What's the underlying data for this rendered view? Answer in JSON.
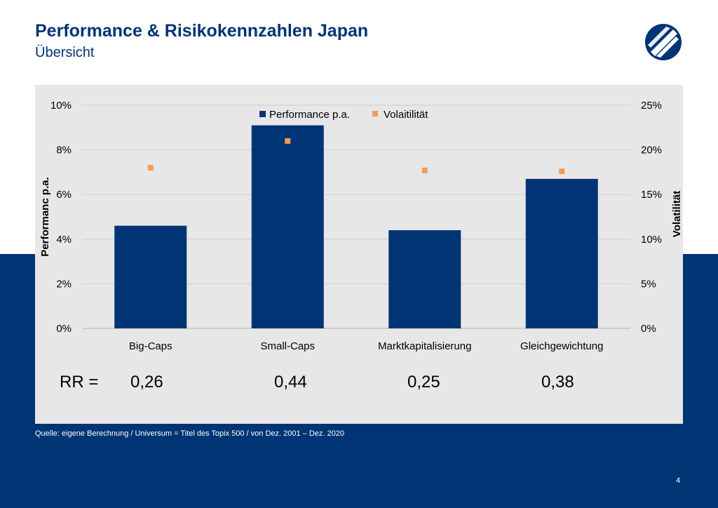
{
  "header": {
    "title": "Performance & Risikokennzahlen Japan",
    "subtitle": "Übersicht"
  },
  "logo": {
    "icon": "company-logo-icon",
    "color": "#013474"
  },
  "chart_data": {
    "type": "bar",
    "categories": [
      "Big-Caps",
      "Small-Caps",
      "Marktkapitalisierung",
      "Gleichgewichtung"
    ],
    "series": [
      {
        "name": "Performance p.a.",
        "kind": "bar",
        "axis": "left",
        "color": "#013474",
        "values": [
          4.6,
          9.1,
          4.4,
          6.7
        ]
      },
      {
        "name": "Volaitilität",
        "kind": "marker",
        "axis": "right",
        "color": "#f79a55",
        "values": [
          18.0,
          21.0,
          17.7,
          17.6
        ]
      }
    ],
    "y_left": {
      "label": "Performanc p.a.",
      "ylim": [
        0,
        10
      ],
      "ticks": [
        "0%",
        "2%",
        "4%",
        "6%",
        "8%",
        "10%"
      ]
    },
    "y_right": {
      "label": "Volatilität",
      "ylim": [
        0,
        25
      ],
      "ticks": [
        "0%",
        "5%",
        "10%",
        "15%",
        "20%",
        "25%"
      ]
    },
    "grid": true,
    "legend_position": "top-center"
  },
  "rr": {
    "label": "RR =",
    "values": [
      "0,26",
      "0,44",
      "0,25",
      "0,38"
    ]
  },
  "footer": {
    "source": "Quelle: eigene Berechnung  / Universum  = Titel des  Topix 500 / von Dez. 2001 – Dez. 2020",
    "page": "4"
  }
}
